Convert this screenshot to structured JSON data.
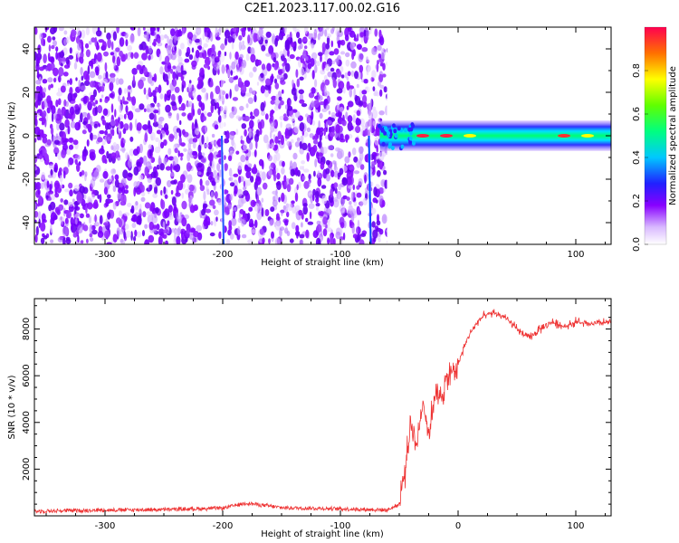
{
  "title": "C2E1.2023.117.00.02.G16",
  "chart_data": [
    {
      "type": "heatmap",
      "xlabel": "Height of straight line (km)",
      "ylabel": "Frequency (Hz)",
      "xlim": [
        -360,
        130
      ],
      "ylim": [
        -50,
        50
      ],
      "x_ticks": [
        -300,
        -200,
        -100,
        0,
        100
      ],
      "y_ticks": [
        -40,
        -20,
        0,
        20,
        40
      ],
      "colorbar": {
        "label": "Normalized spectral amplitude",
        "range": [
          0,
          1
        ],
        "ticks": [
          "0.0",
          "0.2",
          "0.4",
          "0.6",
          "0.8"
        ]
      },
      "features": {
        "noise_region_km": [
          -360,
          -65
        ],
        "signal_onset_km": -65,
        "signal_band_hz": [
          -3,
          3
        ],
        "vertical_streaks_km": [
          -200,
          -75
        ]
      },
      "grid": false
    },
    {
      "type": "line",
      "xlabel": "Height of straight line (km)",
      "ylabel": "SNR (10 * v/v)",
      "xlim": [
        -360,
        130
      ],
      "ylim": [
        0,
        9300
      ],
      "x_ticks": [
        -300,
        -200,
        -100,
        0,
        100
      ],
      "y_ticks": [
        2000,
        4000,
        6000,
        8000
      ],
      "line_color": "#ee3333",
      "series": [
        {
          "x": [
            -360,
            -300,
            -250,
            -200,
            -180,
            -150,
            -100,
            -60,
            -50,
            -45,
            -40,
            -35,
            -30,
            -25,
            -20,
            -15,
            -10,
            -5,
            0,
            5,
            10,
            15,
            20,
            25,
            30,
            40,
            50,
            60,
            70,
            80,
            90,
            100,
            110,
            120,
            130
          ],
          "values": [
            200,
            250,
            270,
            330,
            550,
            350,
            300,
            250,
            500,
            2000,
            4000,
            3000,
            5000,
            3500,
            5200,
            5000,
            5800,
            6200,
            6500,
            7200,
            7800,
            8200,
            8500,
            8600,
            8700,
            8500,
            8000,
            7600,
            8000,
            8300,
            8100,
            8300,
            8200,
            8250,
            8300
          ]
        }
      ],
      "grid": false
    }
  ]
}
